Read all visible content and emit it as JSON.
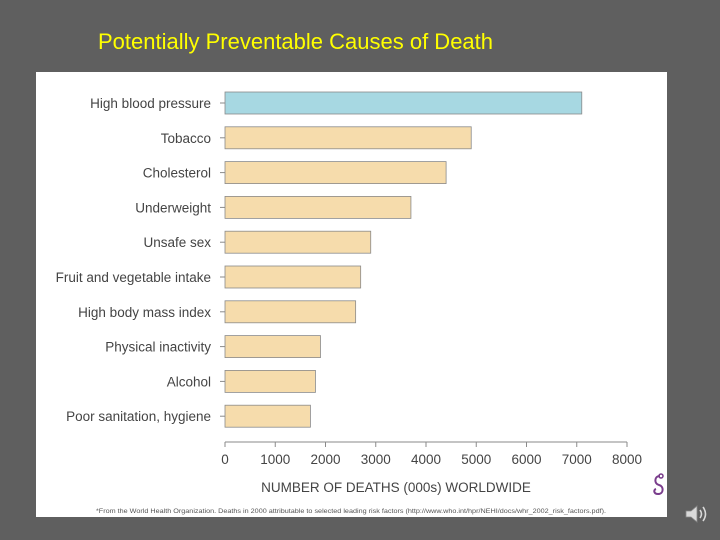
{
  "slide": {
    "title": "Potentially Preventable Causes of Death"
  },
  "chart_data": {
    "type": "bar",
    "orientation": "horizontal",
    "categories": [
      "High blood pressure",
      "Tobacco",
      "Cholesterol",
      "Underweight",
      "Unsafe sex",
      "Fruit and vegetable intake",
      "High body mass index",
      "Physical inactivity",
      "Alcohol",
      "Poor sanitation, hygiene"
    ],
    "values": [
      7100,
      4900,
      4400,
      3700,
      2900,
      2700,
      2600,
      1900,
      1800,
      1700
    ],
    "highlight_index": 0,
    "xlabel": "NUMBER OF DEATHS (000s) WORLDWIDE",
    "ylabel": "",
    "xlim": [
      0,
      8000
    ],
    "xticks": [
      0,
      1000,
      2000,
      3000,
      4000,
      5000,
      6000,
      7000,
      8000
    ],
    "grid": false,
    "source_note": "*From the World Health Organization. Deaths in 2000 attributable to selected leading risk factors (http://www.who.int/hpr/NEHI/docs/whr_2002_risk_factors.pdf).",
    "colors": {
      "highlight": "#a7d8e2",
      "bar": "#f6dcac",
      "bar_stroke": "#8a8a8a",
      "text": "#444444"
    }
  },
  "icons": {
    "logo": "publisher-logo-icon",
    "speaker": "speaker-icon"
  }
}
